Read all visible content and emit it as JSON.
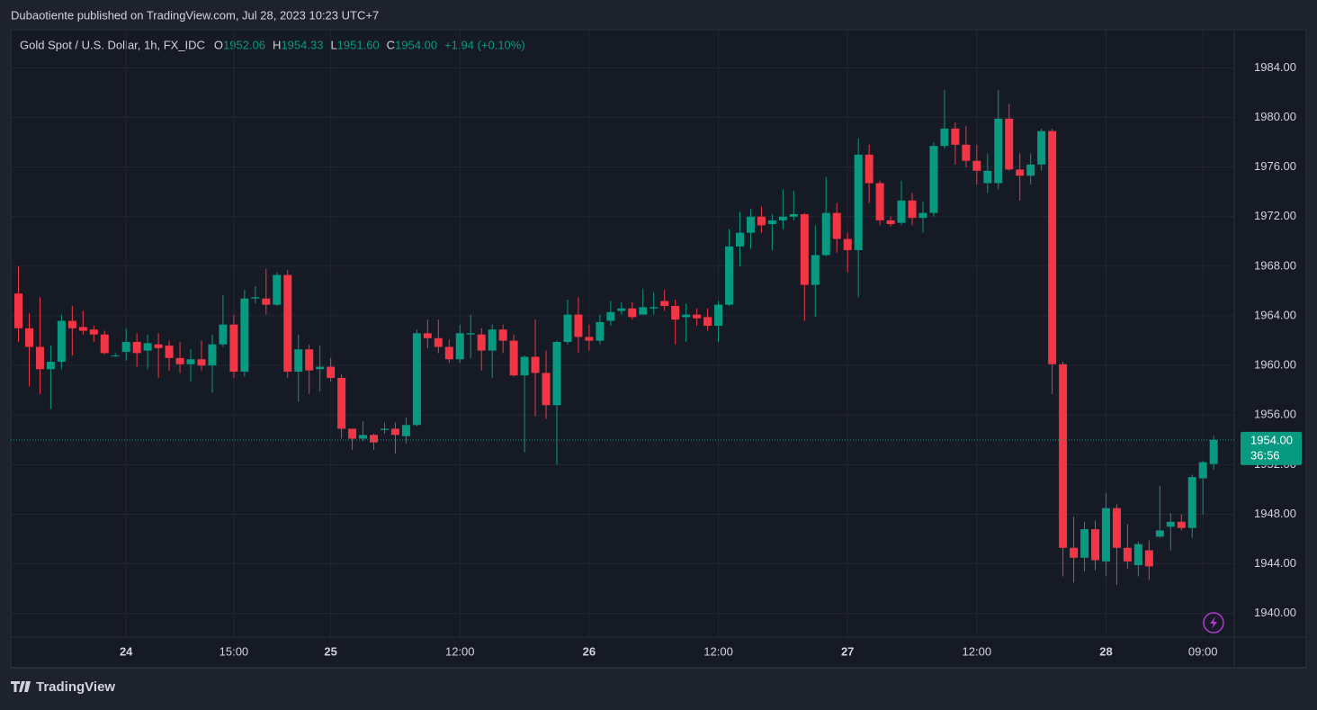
{
  "chart_data": {
    "type": "candlestick",
    "attribution": "Dubaotiente published on TradingView.com, Jul 28, 2023 10:23 UTC+7",
    "title": "Gold Spot / U.S. Dollar, 1h, FX_IDC",
    "legend_items": [
      {
        "key": "O",
        "value": "1952.06"
      },
      {
        "key": "H",
        "value": "1954.33"
      },
      {
        "key": "L",
        "value": "1951.60"
      },
      {
        "key": "C",
        "value": "1954.00"
      }
    ],
    "change": "+1.94 (+0.10%)",
    "last_price_label": "1954.00",
    "countdown": "36:56",
    "brand": "TradingView",
    "up_color": "#089981",
    "down_color": "#f23645",
    "grid": true,
    "ylim": [
      1938.1,
      1987.0
    ],
    "yticks": [
      {
        "value": 1940,
        "label": "1940.00"
      },
      {
        "value": 1944,
        "label": "1944.00"
      },
      {
        "value": 1948,
        "label": "1948.00"
      },
      {
        "value": 1952,
        "label": "1952.00"
      },
      {
        "value": 1956,
        "label": "1956.00"
      },
      {
        "value": 1960,
        "label": "1960.00"
      },
      {
        "value": 1964,
        "label": "1964.00"
      },
      {
        "value": 1968,
        "label": "1968.00"
      },
      {
        "value": 1972,
        "label": "1972.00"
      },
      {
        "value": 1976,
        "label": "1976.00"
      },
      {
        "value": 1980,
        "label": "1980.00"
      },
      {
        "value": 1984,
        "label": "1984.00"
      }
    ],
    "categories": [
      null,
      null,
      null,
      null,
      null,
      null,
      null,
      null,
      null,
      null,
      "24",
      null,
      null,
      null,
      null,
      null,
      null,
      null,
      null,
      null,
      "15:00",
      null,
      null,
      null,
      null,
      null,
      null,
      null,
      null,
      "25",
      null,
      null,
      null,
      null,
      null,
      null,
      null,
      null,
      null,
      null,
      null,
      "12:00",
      null,
      null,
      null,
      null,
      null,
      null,
      null,
      null,
      null,
      null,
      null,
      "26",
      null,
      null,
      null,
      null,
      null,
      null,
      null,
      null,
      null,
      null,
      null,
      "12:00",
      null,
      null,
      null,
      null,
      null,
      null,
      null,
      null,
      null,
      null,
      null,
      "27",
      null,
      null,
      null,
      null,
      null,
      null,
      null,
      null,
      null,
      null,
      null,
      "12:00",
      null,
      null,
      null,
      null,
      null,
      null,
      null,
      null,
      null,
      null,
      null,
      "28",
      null,
      null,
      null,
      null,
      null,
      null,
      null,
      null,
      "09:00",
      null
    ],
    "open": [
      1965.8,
      1963.0,
      1961.5,
      1959.7,
      1960.3,
      1963.6,
      1963.1,
      1962.9,
      1962.5,
      1960.8,
      1961.1,
      1961.9,
      1961.2,
      1961.7,
      1961.6,
      1960.6,
      1960.1,
      1960.5,
      1960.0,
      1961.7,
      1963.3,
      1959.5,
      1965.4,
      1965.4,
      1964.9,
      1967.3,
      1959.5,
      1961.3,
      1959.7,
      1959.9,
      1959.0,
      1954.9,
      1954.1,
      1954.4,
      1954.8,
      1954.9,
      1954.3,
      1955.2,
      1962.6,
      1962.2,
      1961.5,
      1960.5,
      1962.5,
      1962.5,
      1961.2,
      1962.9,
      1962.0,
      1959.2,
      1960.7,
      1959.4,
      1956.8,
      1961.9,
      1964.1,
      1962.3,
      1962.0,
      1963.6,
      1964.4,
      1964.6,
      1964.1,
      1964.6,
      1965.2,
      1964.8,
      1963.9,
      1964.1,
      1963.9,
      1963.2,
      1964.9,
      1969.6,
      1970.7,
      1972.0,
      1971.4,
      1971.7,
      1972.0,
      1972.2,
      1966.5,
      1968.9,
      1972.3,
      1970.2,
      1969.3,
      1977.0,
      1974.7,
      1971.7,
      1971.5,
      1973.3,
      1971.9,
      1972.3,
      1977.7,
      1979.1,
      1977.8,
      1976.5,
      1974.7,
      1974.7,
      1979.9,
      1975.8,
      1975.3,
      1976.2,
      1978.9,
      1960.1,
      1945.3,
      1944.5,
      1946.8,
      1944.2,
      1948.5,
      1945.3,
      1943.9,
      1945.1,
      1946.2,
      1947.0,
      1947.4,
      1946.9,
      1950.9,
      1952.06
    ],
    "high": [
      1968.0,
      1964.2,
      1965.5,
      1961.6,
      1964.1,
      1964.8,
      1964.4,
      1963.2,
      1962.8,
      1961.0,
      1963.0,
      1962.6,
      1962.5,
      1962.6,
      1962.0,
      1961.9,
      1961.3,
      1962.0,
      1962.5,
      1965.7,
      1964.1,
      1966.1,
      1966.4,
      1967.8,
      1967.5,
      1967.7,
      1962.5,
      1961.7,
      1961.6,
      1960.6,
      1959.3,
      1954.9,
      1955.5,
      1954.5,
      1955.4,
      1955.4,
      1955.8,
      1962.9,
      1963.7,
      1963.7,
      1962.1,
      1963.3,
      1964.1,
      1963.0,
      1963.3,
      1963.3,
      1962.5,
      1960.8,
      1963.7,
      1961.2,
      1962.0,
      1965.3,
      1965.5,
      1963.3,
      1964.1,
      1965.2,
      1965.1,
      1965.1,
      1966.2,
      1965.9,
      1966.1,
      1965.3,
      1965.0,
      1964.6,
      1964.6,
      1965.2,
      1971.0,
      1972.4,
      1972.6,
      1972.8,
      1972.2,
      1974.2,
      1974.1,
      1972.3,
      1971.3,
      1975.2,
      1973.1,
      1970.7,
      1978.3,
      1977.8,
      1974.9,
      1972.0,
      1974.9,
      1973.9,
      1973.2,
      1978.0,
      1982.2,
      1979.6,
      1979.3,
      1977.8,
      1977.1,
      1982.2,
      1981.1,
      1977.1,
      1977.1,
      1979.1,
      1979.1,
      1960.3,
      1947.8,
      1947.4,
      1947.5,
      1949.7,
      1948.8,
      1947.2,
      1945.8,
      1945.9,
      1950.3,
      1948.1,
      1948.0,
      1951.2,
      1952.3,
      1954.33
    ],
    "low": [
      1961.9,
      1958.3,
      1957.7,
      1956.5,
      1959.7,
      1960.8,
      1962.5,
      1961.9,
      1960.9,
      1960.7,
      1960.4,
      1959.9,
      1959.7,
      1959.0,
      1959.6,
      1959.4,
      1958.7,
      1959.6,
      1957.8,
      1961.5,
      1959.0,
      1959.1,
      1965.0,
      1964.1,
      1964.8,
      1959.0,
      1957.1,
      1957.7,
      1957.9,
      1958.7,
      1954.1,
      1953.2,
      1953.9,
      1953.2,
      1954.5,
      1952.9,
      1953.7,
      1955.1,
      1961.4,
      1961.0,
      1960.2,
      1960.2,
      1960.6,
      1959.6,
      1959.0,
      1961.0,
      1959.1,
      1953.0,
      1955.9,
      1955.7,
      1952.0,
      1961.7,
      1961.0,
      1961.2,
      1961.7,
      1963.2,
      1964.1,
      1963.7,
      1964.1,
      1964.1,
      1964.4,
      1961.7,
      1961.9,
      1963.2,
      1962.8,
      1961.9,
      1964.8,
      1968.0,
      1969.4,
      1970.7,
      1969.3,
      1971.0,
      1971.7,
      1963.6,
      1963.9,
      1968.8,
      1969.1,
      1967.5,
      1965.5,
      1973.1,
      1971.3,
      1971.2,
      1971.3,
      1971.3,
      1970.7,
      1972.0,
      1977.5,
      1976.2,
      1976.0,
      1974.6,
      1973.9,
      1974.2,
      1975.7,
      1973.3,
      1974.6,
      1975.7,
      1957.7,
      1943.0,
      1942.5,
      1943.4,
      1943.5,
      1943.0,
      1942.3,
      1943.6,
      1943.0,
      1942.7,
      1946.1,
      1945.1,
      1946.7,
      1946.1,
      1948.0,
      1951.6
    ],
    "close": [
      1963.0,
      1961.5,
      1959.7,
      1960.3,
      1963.6,
      1963.0,
      1962.8,
      1962.5,
      1961.0,
      1960.8,
      1961.9,
      1961.0,
      1961.8,
      1961.4,
      1960.6,
      1960.1,
      1960.5,
      1960.0,
      1961.7,
      1963.3,
      1959.5,
      1965.4,
      1965.5,
      1964.9,
      1967.3,
      1959.5,
      1961.3,
      1959.6,
      1959.9,
      1959.0,
      1954.9,
      1954.1,
      1954.4,
      1953.8,
      1954.9,
      1954.4,
      1955.2,
      1962.6,
      1962.2,
      1961.5,
      1960.5,
      1962.6,
      1962.6,
      1961.2,
      1962.9,
      1962.0,
      1959.2,
      1960.7,
      1959.4,
      1956.8,
      1961.9,
      1964.1,
      1962.3,
      1962.0,
      1963.5,
      1964.3,
      1964.6,
      1963.9,
      1964.7,
      1964.7,
      1964.8,
      1963.7,
      1964.1,
      1963.8,
      1963.2,
      1964.9,
      1969.6,
      1970.7,
      1972.0,
      1971.3,
      1971.7,
      1972.0,
      1972.2,
      1966.5,
      1968.9,
      1972.3,
      1970.2,
      1969.3,
      1977.0,
      1974.7,
      1971.7,
      1971.4,
      1973.3,
      1971.9,
      1972.3,
      1977.7,
      1979.1,
      1977.8,
      1976.5,
      1975.7,
      1975.7,
      1979.9,
      1975.8,
      1975.3,
      1976.2,
      1978.9,
      1960.1,
      1945.3,
      1944.5,
      1946.8,
      1944.3,
      1948.5,
      1945.3,
      1944.2,
      1945.6,
      1943.8,
      1946.7,
      1947.4,
      1946.9,
      1951.0,
      1952.2,
      1954.0
    ]
  }
}
